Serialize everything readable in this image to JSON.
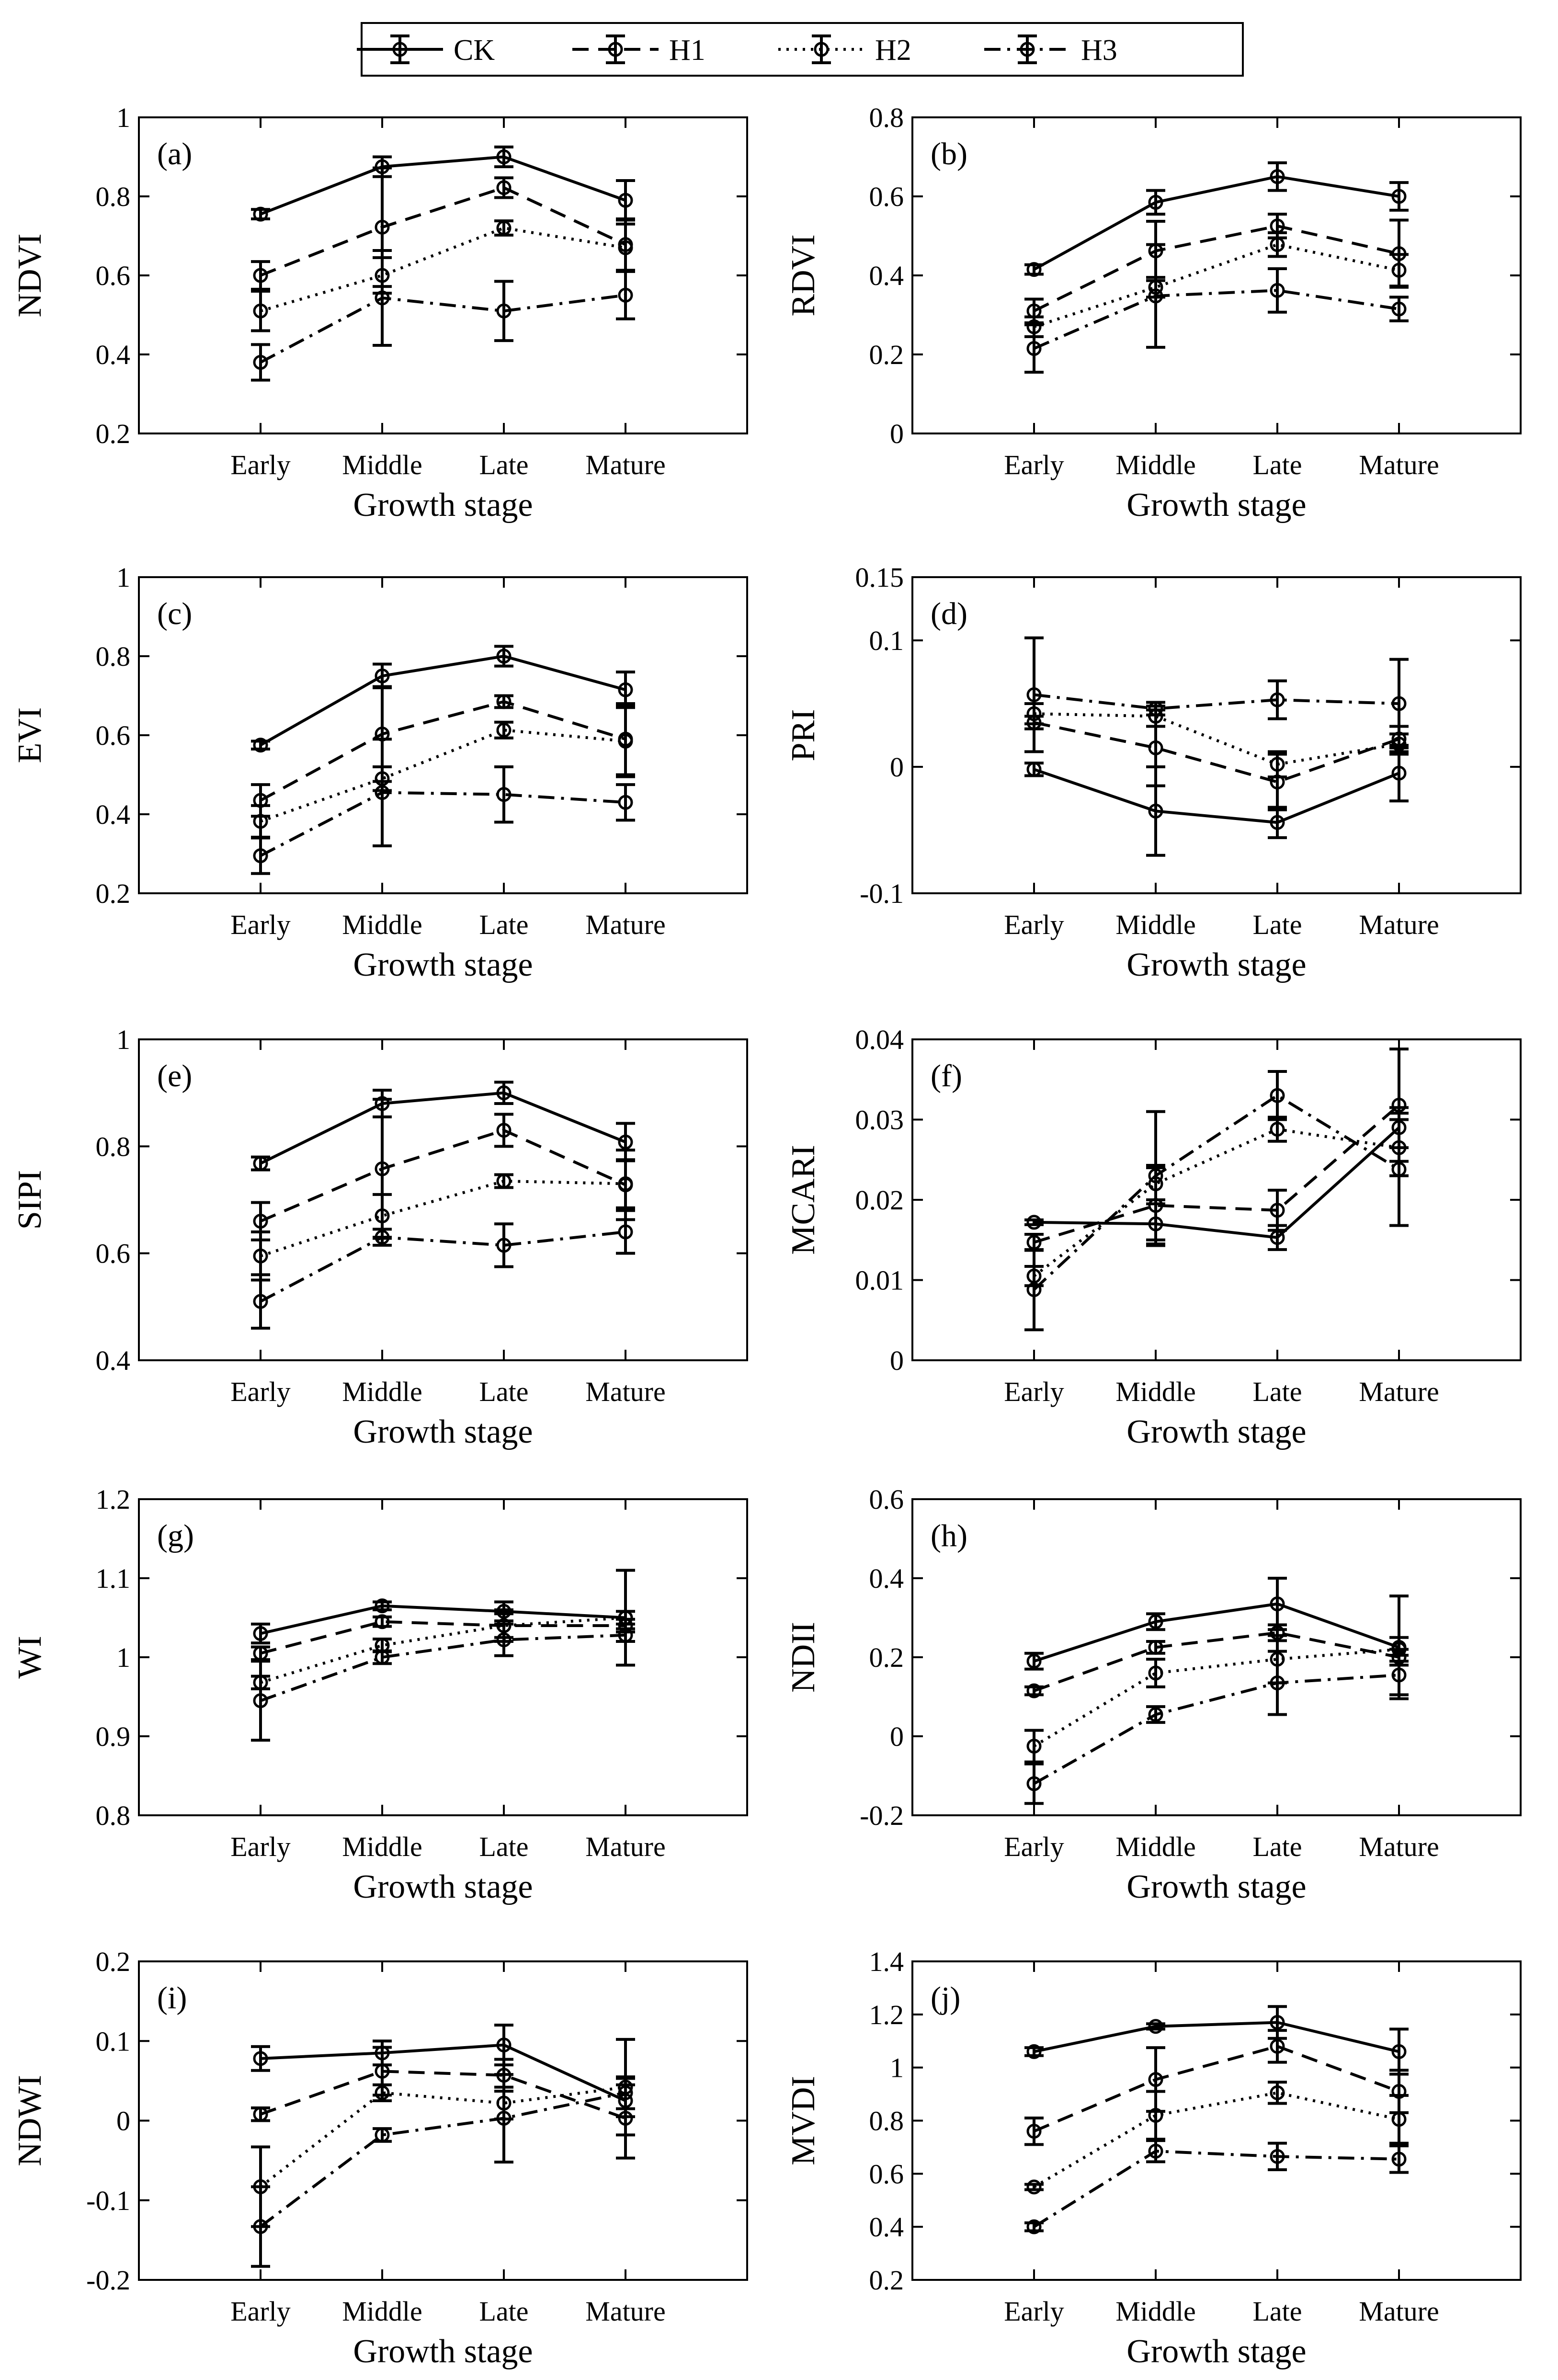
{
  "legend": [
    {
      "label": "CK",
      "style": "solid"
    },
    {
      "label": "H1",
      "style": "dashed"
    },
    {
      "label": "H2",
      "style": "dotted"
    },
    {
      "label": "H3",
      "style": "dashdot"
    }
  ],
  "chart_data": [
    {
      "type": "line",
      "panel_label": "(a)",
      "ylabel": "NDVI",
      "xlabel": "Growth stage",
      "categories": [
        "Early",
        "Middle",
        "Late",
        "Mature"
      ],
      "ylim": [
        0.2,
        1.0
      ],
      "yticks": [
        0.2,
        0.4,
        0.6,
        0.8,
        1.0
      ],
      "ytick_labels": [
        "0.2",
        "0.4",
        "0.6",
        "0.8",
        "1"
      ],
      "series": [
        {
          "name": "CK",
          "values": [
            0.755,
            0.875,
            0.9,
            0.79
          ],
          "errors": [
            0.012,
            0.025,
            0.025,
            0.05
          ]
        },
        {
          "name": "H1",
          "values": [
            0.6,
            0.722,
            0.822,
            0.678
          ],
          "errors": [
            0.035,
            0.15,
            0.025,
            0.065
          ]
        },
        {
          "name": "H2",
          "values": [
            0.51,
            0.6,
            0.72,
            0.67
          ],
          "errors": [
            0.05,
            0.045,
            0.018,
            0.06
          ]
        },
        {
          "name": "H3",
          "values": [
            0.38,
            0.543,
            0.51,
            0.55
          ],
          "errors": [
            0.045,
            0.12,
            0.075,
            0.06
          ]
        }
      ]
    },
    {
      "type": "line",
      "panel_label": "(b)",
      "ylabel": "RDVI",
      "xlabel": "Growth stage",
      "categories": [
        "Early",
        "Middle",
        "Late",
        "Mature"
      ],
      "ylim": [
        0,
        0.8
      ],
      "yticks": [
        0,
        0.2,
        0.4,
        0.6,
        0.8
      ],
      "ytick_labels": [
        "0",
        "0.2",
        "0.4",
        "0.6",
        "0.8"
      ],
      "series": [
        {
          "name": "CK",
          "values": [
            0.415,
            0.585,
            0.65,
            0.6
          ],
          "errors": [
            0.012,
            0.03,
            0.035,
            0.035
          ]
        },
        {
          "name": "H1",
          "values": [
            0.31,
            0.462,
            0.525,
            0.455
          ],
          "errors": [
            0.03,
            0.075,
            0.03,
            0.085
          ]
        },
        {
          "name": "H2",
          "values": [
            0.27,
            0.37,
            0.478,
            0.413
          ],
          "errors": [
            0.025,
            0.025,
            0.03,
            0.04
          ]
        },
        {
          "name": "H3",
          "values": [
            0.215,
            0.348,
            0.362,
            0.315
          ],
          "errors": [
            0.06,
            0.13,
            0.055,
            0.03
          ]
        }
      ]
    },
    {
      "type": "line",
      "panel_label": "(c)",
      "ylabel": "EVI",
      "xlabel": "Growth stage",
      "categories": [
        "Early",
        "Middle",
        "Late",
        "Mature"
      ],
      "ylim": [
        0.2,
        1.0
      ],
      "yticks": [
        0.2,
        0.4,
        0.6,
        0.8,
        1.0
      ],
      "ytick_labels": [
        "0.2",
        "0.4",
        "0.6",
        "0.8",
        "1"
      ],
      "series": [
        {
          "name": "CK",
          "values": [
            0.575,
            0.75,
            0.8,
            0.715
          ],
          "errors": [
            0.01,
            0.03,
            0.025,
            0.045
          ]
        },
        {
          "name": "H1",
          "values": [
            0.435,
            0.603,
            0.685,
            0.59
          ],
          "errors": [
            0.04,
            0.12,
            0.015,
            0.09
          ]
        },
        {
          "name": "H2",
          "values": [
            0.382,
            0.49,
            0.613,
            0.585
          ],
          "errors": [
            0.04,
            0.03,
            0.02,
            0.09
          ]
        },
        {
          "name": "H3",
          "values": [
            0.295,
            0.455,
            0.45,
            0.43
          ],
          "errors": [
            0.045,
            0.135,
            0.07,
            0.045
          ]
        }
      ]
    },
    {
      "type": "line",
      "panel_label": "(d)",
      "ylabel": "PRI",
      "xlabel": "Growth stage",
      "categories": [
        "Early",
        "Middle",
        "Late",
        "Mature"
      ],
      "ylim": [
        -0.1,
        0.15
      ],
      "yticks": [
        -0.1,
        0,
        0.1,
        0.15
      ],
      "ytick_labels": [
        "-0.1",
        "0",
        "0.1",
        "0.15"
      ],
      "series": [
        {
          "name": "CK",
          "values": [
            -0.002,
            -0.035,
            -0.044,
            -0.005
          ],
          "errors": [
            0.005,
            0.035,
            0.012,
            0.022
          ]
        },
        {
          "name": "H1",
          "values": [
            0.035,
            0.015,
            -0.012,
            0.022
          ],
          "errors": [
            0.005,
            0.03,
            0.022,
            0.01
          ]
        },
        {
          "name": "H2",
          "values": [
            0.042,
            0.04,
            0.002,
            0.018
          ],
          "errors": [
            0.008,
            0.008,
            0.01,
            0.008
          ]
        },
        {
          "name": "H3",
          "values": [
            0.057,
            0.046,
            0.053,
            0.05
          ],
          "errors": [
            0.045,
            0.005,
            0.015,
            0.035
          ]
        }
      ]
    },
    {
      "type": "line",
      "panel_label": "(e)",
      "ylabel": "SIPI",
      "xlabel": "Growth stage",
      "categories": [
        "Early",
        "Middle",
        "Late",
        "Mature"
      ],
      "ylim": [
        0.4,
        1.0
      ],
      "yticks": [
        0.4,
        0.6,
        0.8,
        1.0
      ],
      "ytick_labels": [
        "0.4",
        "0.6",
        "0.8",
        "1"
      ],
      "series": [
        {
          "name": "CK",
          "values": [
            0.768,
            0.88,
            0.9,
            0.808
          ],
          "errors": [
            0.012,
            0.025,
            0.02,
            0.035
          ]
        },
        {
          "name": "H1",
          "values": [
            0.66,
            0.758,
            0.83,
            0.728
          ],
          "errors": [
            0.035,
            0.13,
            0.03,
            0.065
          ]
        },
        {
          "name": "H2",
          "values": [
            0.595,
            0.67,
            0.735,
            0.73
          ],
          "errors": [
            0.045,
            0.04,
            0.012,
            0.045
          ]
        },
        {
          "name": "H3",
          "values": [
            0.51,
            0.63,
            0.615,
            0.64
          ],
          "errors": [
            0.05,
            0.015,
            0.04,
            0.04
          ]
        }
      ]
    },
    {
      "type": "line",
      "panel_label": "(f)",
      "ylabel": "MCARI",
      "xlabel": "Growth stage",
      "categories": [
        "Early",
        "Middle",
        "Late",
        "Mature"
      ],
      "ylim": [
        0,
        0.04
      ],
      "yticks": [
        0,
        0.01,
        0.02,
        0.03,
        0.04
      ],
      "ytick_labels": [
        "0",
        "0.01",
        "0.02",
        "0.03",
        "0.04"
      ],
      "series": [
        {
          "name": "CK",
          "values": [
            0.0172,
            0.017,
            0.0153,
            0.029
          ],
          "errors": [
            0.0003,
            0.0025,
            0.0015,
            0.0025
          ]
        },
        {
          "name": "H1",
          "values": [
            0.0147,
            0.0193,
            0.0187,
            0.0318
          ],
          "errors": [
            0.001,
            0.005,
            0.0025,
            0.007
          ]
        },
        {
          "name": "H2",
          "values": [
            0.0105,
            0.022,
            0.0288,
            0.0265
          ],
          "errors": [
            0.0012,
            0.002,
            0.0015,
            0.0035
          ]
        },
        {
          "name": "H3",
          "values": [
            0.0088,
            0.023,
            0.033,
            0.0238
          ],
          "errors": [
            0.005,
            0.008,
            0.003,
            0.007
          ]
        }
      ]
    },
    {
      "type": "line",
      "panel_label": "(g)",
      "ylabel": "WI",
      "xlabel": "Growth stage",
      "categories": [
        "Early",
        "Middle",
        "Late",
        "Mature"
      ],
      "ylim": [
        0.8,
        1.2
      ],
      "yticks": [
        0.8,
        0.9,
        1.0,
        1.1,
        1.2
      ],
      "ytick_labels": [
        "0.8",
        "0.9",
        "1",
        "1.1",
        "1.2"
      ],
      "series": [
        {
          "name": "CK",
          "values": [
            1.03,
            1.065,
            1.058,
            1.05
          ],
          "errors": [
            0.012,
            0.005,
            0.012,
            0.008
          ]
        },
        {
          "name": "H1",
          "values": [
            1.005,
            1.045,
            1.04,
            1.04
          ],
          "errors": [
            0.008,
            0.006,
            0.015,
            0.008
          ]
        },
        {
          "name": "H2",
          "values": [
            0.968,
            1.015,
            1.04,
            1.05
          ],
          "errors": [
            0.008,
            0.008,
            0.02,
            0.06
          ]
        },
        {
          "name": "H3",
          "values": [
            0.945,
            1.0,
            1.022,
            1.028
          ],
          "errors": [
            0.05,
            0.008,
            0.02,
            0.008
          ]
        }
      ]
    },
    {
      "type": "line",
      "panel_label": "(h)",
      "ylabel": "NDII",
      "xlabel": "Growth stage",
      "categories": [
        "Early",
        "Middle",
        "Late",
        "Mature"
      ],
      "ylim": [
        -0.2,
        0.6
      ],
      "yticks": [
        -0.2,
        0,
        0.2,
        0.4,
        0.6
      ],
      "ytick_labels": [
        "-0.2",
        "0",
        "0.2",
        "0.4",
        "0.6"
      ],
      "series": [
        {
          "name": "CK",
          "values": [
            0.19,
            0.29,
            0.335,
            0.225
          ],
          "errors": [
            0.02,
            0.02,
            0.065,
            0.13
          ]
        },
        {
          "name": "H1",
          "values": [
            0.115,
            0.225,
            0.262,
            0.2
          ],
          "errors": [
            0.01,
            0.015,
            0.02,
            0.02
          ]
        },
        {
          "name": "H2",
          "values": [
            -0.025,
            0.16,
            0.195,
            0.22
          ],
          "errors": [
            0.04,
            0.035,
            0.06,
            0.03
          ]
        },
        {
          "name": "H3",
          "values": [
            -0.12,
            0.055,
            0.135,
            0.155
          ],
          "errors": [
            0.05,
            0.02,
            0.08,
            0.05
          ]
        }
      ]
    },
    {
      "type": "line",
      "panel_label": "(i)",
      "ylabel": "NDWI",
      "xlabel": "Growth stage",
      "categories": [
        "Early",
        "Middle",
        "Late",
        "Mature"
      ],
      "ylim": [
        -0.2,
        0.2
      ],
      "yticks": [
        -0.2,
        -0.1,
        0,
        0.1,
        0.2
      ],
      "ytick_labels": [
        "-0.2",
        "-0.1",
        "0",
        "0.1",
        "0.2"
      ],
      "series": [
        {
          "name": "CK",
          "values": [
            0.078,
            0.085,
            0.095,
            0.025
          ],
          "errors": [
            0.015,
            0.015,
            0.025,
            0.02
          ]
        },
        {
          "name": "H1",
          "values": [
            0.008,
            0.062,
            0.057,
            0.003
          ],
          "errors": [
            0.008,
            0.03,
            0.02,
            0.05
          ]
        },
        {
          "name": "H2",
          "values": [
            -0.083,
            0.035,
            0.022,
            0.042
          ],
          "errors": [
            0.05,
            0.01,
            0.02,
            0.06
          ]
        },
        {
          "name": "H3",
          "values": [
            -0.133,
            -0.018,
            0.003,
            0.035
          ],
          "errors": [
            0.05,
            0.008,
            0.055,
            0.02
          ]
        }
      ]
    },
    {
      "type": "line",
      "panel_label": "(j)",
      "ylabel": "MVDI",
      "xlabel": "Growth stage",
      "categories": [
        "Early",
        "Middle",
        "Late",
        "Mature"
      ],
      "ylim": [
        0.2,
        1.4
      ],
      "yticks": [
        0.2,
        0.4,
        0.6,
        0.8,
        1.0,
        1.2,
        1.4
      ],
      "ytick_labels": [
        "0.2",
        "0.4",
        "0.6",
        "0.8",
        "1",
        "1.2",
        "1.4"
      ],
      "series": [
        {
          "name": "CK",
          "values": [
            1.06,
            1.155,
            1.17,
            1.06
          ],
          "errors": [
            0.015,
            0.01,
            0.06,
            0.085
          ]
        },
        {
          "name": "H1",
          "values": [
            0.76,
            0.955,
            1.08,
            0.91
          ],
          "errors": [
            0.05,
            0.12,
            0.06,
            0.08
          ]
        },
        {
          "name": "H2",
          "values": [
            0.55,
            0.82,
            0.905,
            0.805
          ],
          "errors": [
            0.01,
            0.09,
            0.04,
            0.09
          ]
        },
        {
          "name": "H3",
          "values": [
            0.4,
            0.685,
            0.665,
            0.655
          ],
          "errors": [
            0.015,
            0.04,
            0.05,
            0.05
          ]
        }
      ]
    }
  ]
}
